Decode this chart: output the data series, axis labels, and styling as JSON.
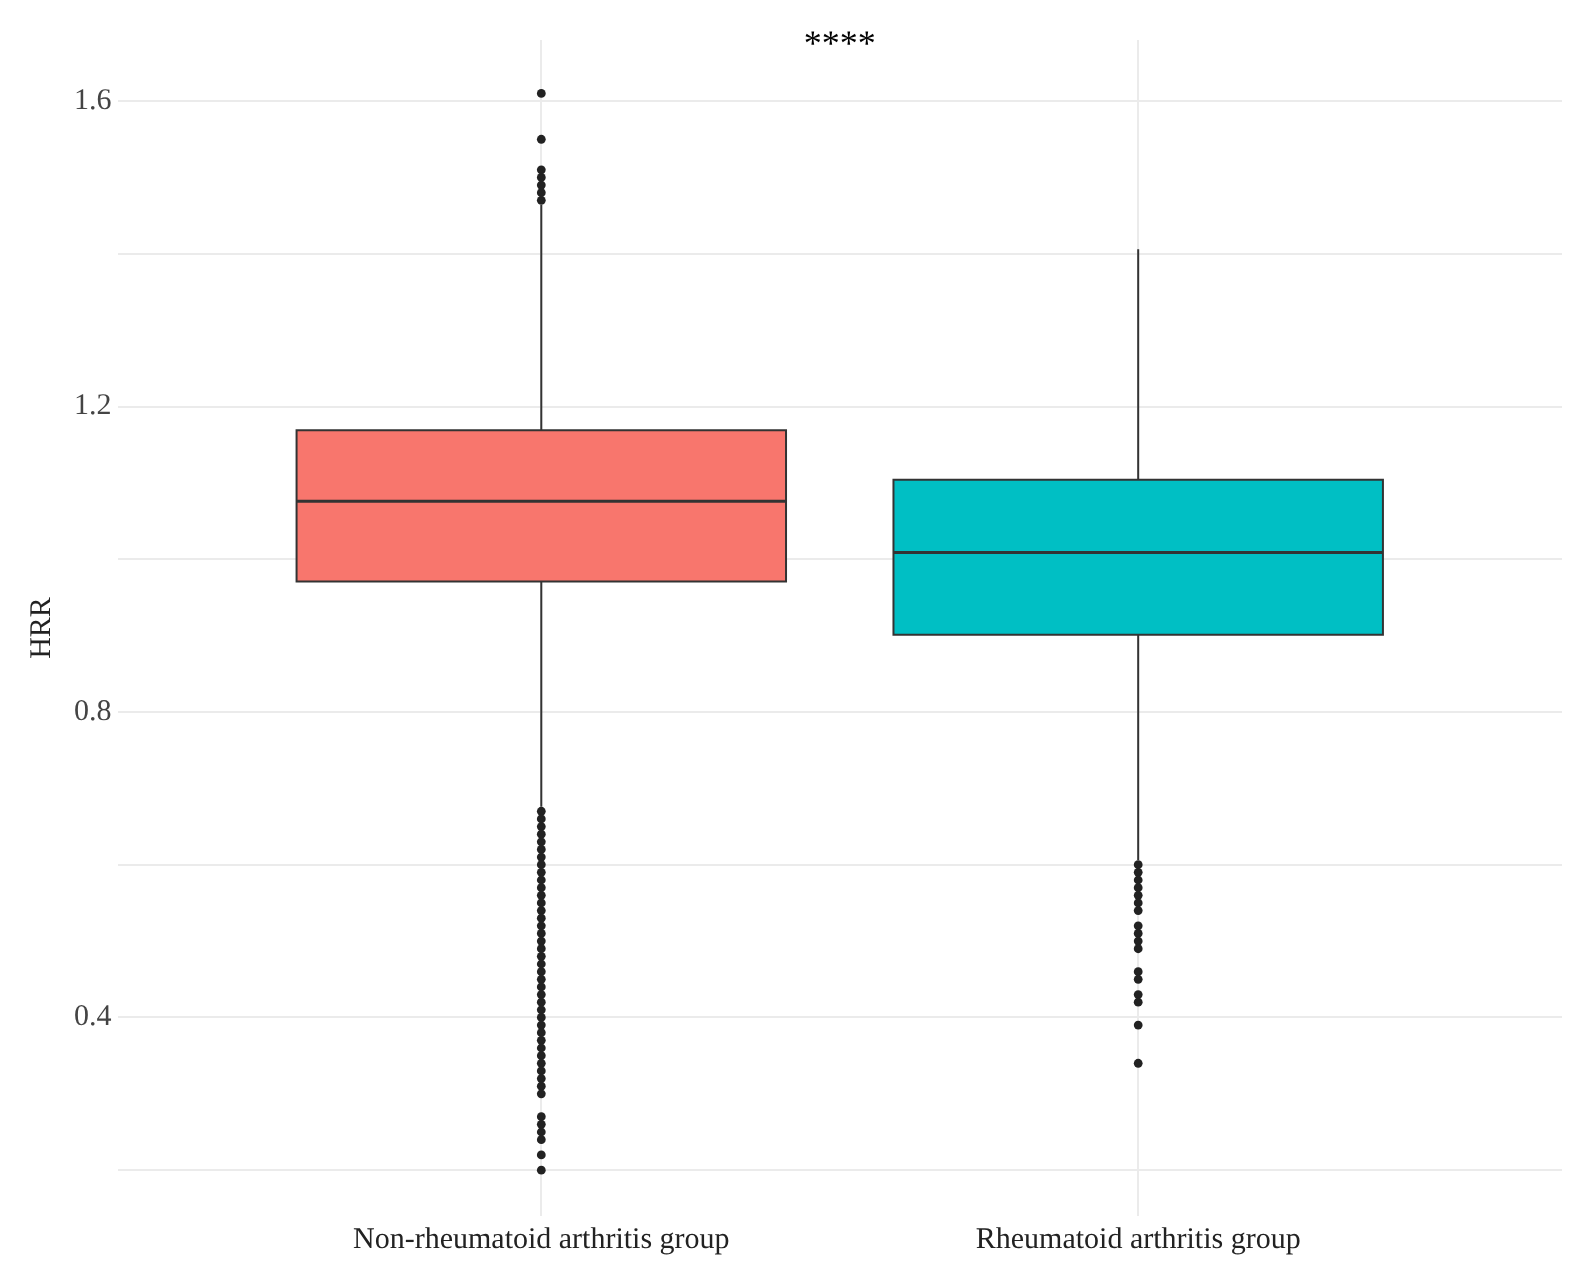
{
  "chart_data": {
    "type": "box",
    "ylabel": "HRR",
    "categories": [
      "Non-rheumatoid arthritis group",
      "Rheumatoid arthritis group"
    ],
    "colors": [
      "#f8766d",
      "#00bfc4"
    ],
    "boxes": [
      {
        "low": 0.676,
        "q1": 0.971,
        "median": 1.076,
        "q3": 1.169,
        "high": 1.464,
        "outliers": [
          1.47,
          1.48,
          1.49,
          1.5,
          1.51,
          1.55,
          1.61,
          0.67,
          0.66,
          0.65,
          0.64,
          0.63,
          0.62,
          0.61,
          0.6,
          0.59,
          0.58,
          0.57,
          0.56,
          0.55,
          0.54,
          0.53,
          0.52,
          0.51,
          0.5,
          0.49,
          0.48,
          0.47,
          0.46,
          0.45,
          0.44,
          0.43,
          0.42,
          0.41,
          0.4,
          0.39,
          0.38,
          0.37,
          0.36,
          0.35,
          0.34,
          0.33,
          0.32,
          0.31,
          0.3,
          0.27,
          0.26,
          0.25,
          0.24,
          0.22,
          0.2
        ]
      },
      {
        "low": 0.606,
        "q1": 0.901,
        "median": 1.009,
        "q3": 1.104,
        "high": 1.406,
        "outliers": [
          0.6,
          0.59,
          0.58,
          0.57,
          0.56,
          0.55,
          0.54,
          0.52,
          0.51,
          0.5,
          0.49,
          0.46,
          0.45,
          0.43,
          0.42,
          0.39,
          0.34
        ]
      }
    ],
    "ylim": [
      0.14,
      1.68
    ],
    "yticks": [
      {
        "value": 0.2,
        "label": null
      },
      0.4,
      {
        "value": 0.6,
        "label": null
      },
      0.8,
      {
        "value": 1.0,
        "label": null
      },
      1.2,
      {
        "value": 1.4,
        "label": null
      },
      1.6
    ],
    "grid": true,
    "annotations": [
      "****"
    ]
  }
}
